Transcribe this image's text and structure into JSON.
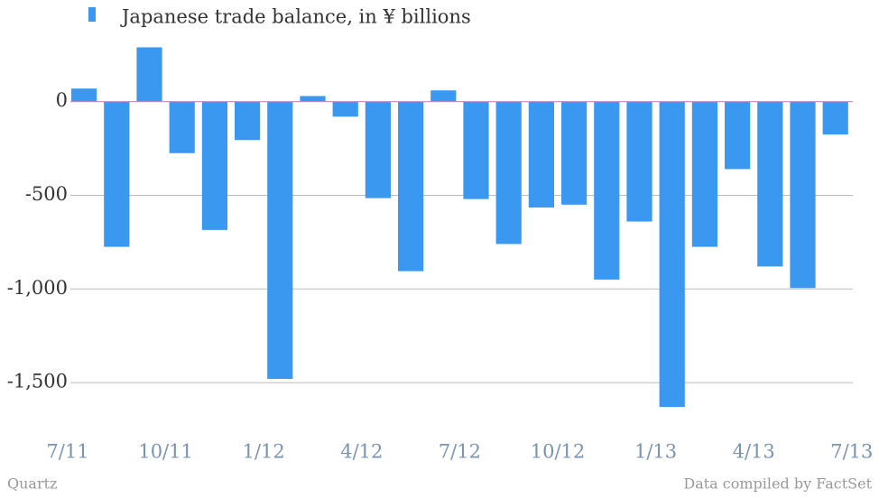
{
  "chart_data": {
    "type": "bar",
    "title": "Japanese trade balance, in ¥ billions",
    "categories": [
      "7/11",
      null,
      null,
      "10/11",
      null,
      null,
      "1/12",
      null,
      null,
      "4/12",
      null,
      null,
      "7/12",
      null,
      null,
      "10/12",
      null,
      null,
      "1/13",
      null,
      null,
      "4/13",
      null,
      null,
      "7/13"
    ],
    "values": [
      70,
      -775,
      290,
      -275,
      -685,
      -205,
      -1480,
      30,
      -80,
      -515,
      -905,
      60,
      -520,
      -760,
      -565,
      -550,
      -950,
      -640,
      -1630,
      -775,
      -360,
      -880,
      -995,
      -175,
      null
    ],
    "color": "#3b98f0",
    "ylim": [
      -1750,
      350
    ],
    "yticks": [
      {
        "value": -1500,
        "label": "-1,500"
      },
      {
        "value": -1000,
        "label": "-1,000"
      },
      -500,
      0
    ],
    "grid": true,
    "source_left": "Quartz",
    "source_right": "Data compiled by FactSet"
  }
}
